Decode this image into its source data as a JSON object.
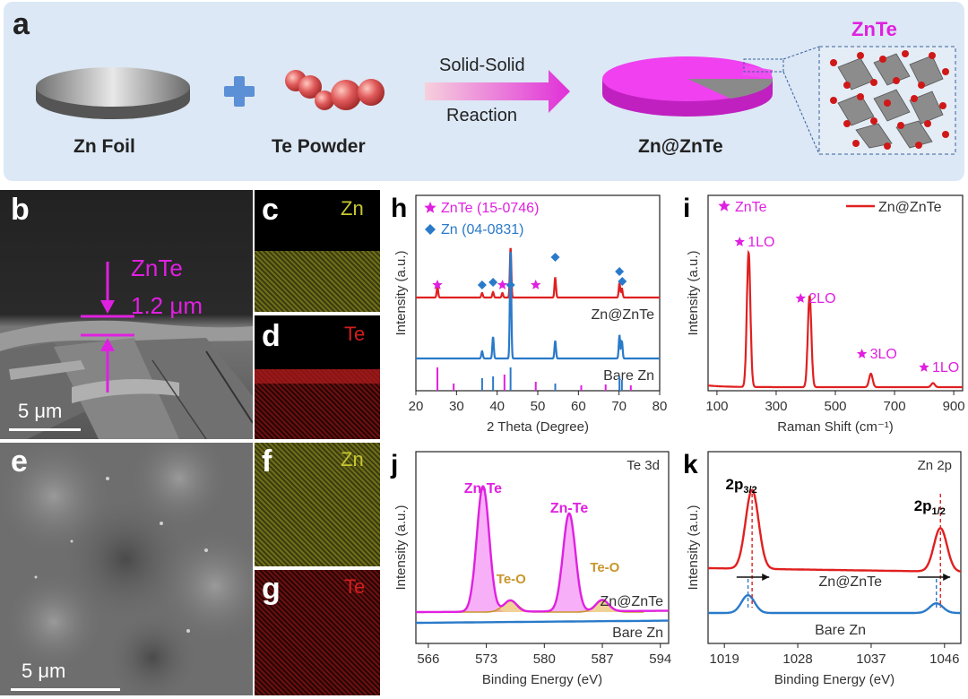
{
  "panel_a": {
    "letter": "a",
    "zn_foil": "Zn Foil",
    "te_powder": "Te Powder",
    "arrow_top": "Solid-Solid",
    "arrow_bottom": "Reaction",
    "product": "Zn@ZnTe",
    "crystal_label": "ZnTe",
    "colors": {
      "magenta": "#e020e0",
      "sphere": "#e05a5a",
      "plus": "#5b8fd6"
    }
  },
  "panel_b": {
    "letter": "b",
    "layer_label": "ZnTe",
    "thickness": "1.2 μm",
    "scale": "5 μm"
  },
  "panel_c": {
    "letter": "c",
    "element": "Zn",
    "color": "#c8c832"
  },
  "panel_d": {
    "letter": "d",
    "element": "Te",
    "color": "#d21e1e"
  },
  "panel_e": {
    "letter": "e",
    "scale": "5 μm"
  },
  "panel_f": {
    "letter": "f",
    "element": "Zn",
    "color": "#c8c832"
  },
  "panel_g": {
    "letter": "g",
    "element": "Te",
    "color": "#d21e1e"
  },
  "chart_data": [
    {
      "panel": "h",
      "type": "line",
      "xlabel": "2 Theta (Degree)",
      "ylabel": "Intensity (a.u.)",
      "xlim": [
        20,
        80
      ],
      "xticks": [
        20,
        30,
        40,
        50,
        60,
        70,
        80
      ],
      "legend": [
        {
          "marker": "star",
          "text": "ZnTe (15-0746)",
          "color": "#e020e0"
        },
        {
          "marker": "diamond",
          "text": "Zn (04-0831)",
          "color": "#2a7ac9"
        }
      ],
      "series": [
        {
          "name": "Zn@ZnTe",
          "color": "#e02020",
          "peaks": [
            [
              25.3,
              0.12
            ],
            [
              36.3,
              0.05
            ],
            [
              39.0,
              0.06
            ],
            [
              41.3,
              0.05
            ],
            [
              43.3,
              0.55
            ],
            [
              54.3,
              0.22
            ],
            [
              70.1,
              0.16
            ],
            [
              70.7,
              0.1
            ]
          ]
        },
        {
          "name": "Bare Zn",
          "color": "#2a7ac9",
          "peaks": [
            [
              36.3,
              0.05
            ],
            [
              39.0,
              0.15
            ],
            [
              43.3,
              0.75
            ],
            [
              54.3,
              0.12
            ],
            [
              70.1,
              0.16
            ],
            [
              70.7,
              0.12
            ]
          ]
        }
      ],
      "ref_sticks": [
        {
          "color": "#e020e0",
          "x": [
            25.3,
            29.3,
            41.8,
            49.5,
            60.7,
            66.7,
            72.9
          ]
        },
        {
          "color": "#2a7ac9",
          "x": [
            36.3,
            39.0,
            43.3,
            54.3,
            70.1,
            70.7
          ]
        }
      ],
      "markers_znte": [
        25.3,
        41.3,
        49.5
      ],
      "markers_zn": [
        36.3,
        39.0,
        43.3,
        54.3,
        70.1,
        70.8
      ]
    },
    {
      "panel": "i",
      "type": "line",
      "xlabel": "Raman Shift (cm⁻¹)",
      "ylabel": "Intensity (a.u.)",
      "xlim": [
        70,
        930
      ],
      "xticks": [
        100,
        300,
        500,
        700,
        900
      ],
      "legend_star": "ZnTe",
      "series": [
        {
          "name": "Zn@ZnTe",
          "color": "#e02020",
          "peaks": [
            [
              207,
              1.0
            ],
            [
              413,
              0.68
            ],
            [
              620,
              0.1
            ],
            [
              830,
              0.03
            ]
          ]
        }
      ],
      "annotations": [
        {
          "x": 207,
          "text": "1LO"
        },
        {
          "x": 413,
          "text": "2LO"
        },
        {
          "x": 620,
          "text": "3LO"
        },
        {
          "x": 830,
          "text": "1LO"
        }
      ]
    },
    {
      "panel": "j",
      "type": "line",
      "title": "Te 3d",
      "xlabel": "Binding Energy (eV)",
      "ylabel": "Intensity (a.u.)",
      "xlim": [
        564.5,
        595
      ],
      "xticks": [
        566,
        573,
        580,
        587,
        594
      ],
      "series": [
        {
          "name": "Zn@ZnTe",
          "color": "#e020e0",
          "peaks": [
            [
              572.6,
              1.0
            ],
            [
              583.0,
              0.78
            ],
            [
              575.9,
              0.09
            ],
            [
              587.0,
              0.09
            ]
          ]
        },
        {
          "name": "Bare Zn",
          "color": "#2a7ac9",
          "peaks": []
        }
      ],
      "annotations": [
        {
          "x": 572.6,
          "text": "Zn-Te"
        },
        {
          "x": 583.0,
          "text": "Zn-Te"
        },
        {
          "x": 576.0,
          "text": "Te-O"
        },
        {
          "x": 587.3,
          "text": "Te-O"
        }
      ]
    },
    {
      "panel": "k",
      "type": "line",
      "title": "Zn 2p",
      "xlabel": "Binding Energy (eV)",
      "ylabel": "Intensity (a.u.)",
      "xlim": [
        1017,
        1048
      ],
      "xticks": [
        1019,
        1028,
        1037,
        1046
      ],
      "series": [
        {
          "name": "Zn@ZnTe",
          "color": "#e02020",
          "peaks": [
            [
              1022.4,
              1.0
            ],
            [
              1045.5,
              0.55
            ]
          ]
        },
        {
          "name": "Bare Zn",
          "color": "#2a7ac9",
          "peaks": [
            [
              1021.9,
              0.22
            ],
            [
              1045.0,
              0.12
            ]
          ]
        }
      ],
      "annotations": [
        {
          "text": "2p",
          "sub": "3/2"
        },
        {
          "text": "2p",
          "sub": "1/2"
        }
      ]
    }
  ]
}
